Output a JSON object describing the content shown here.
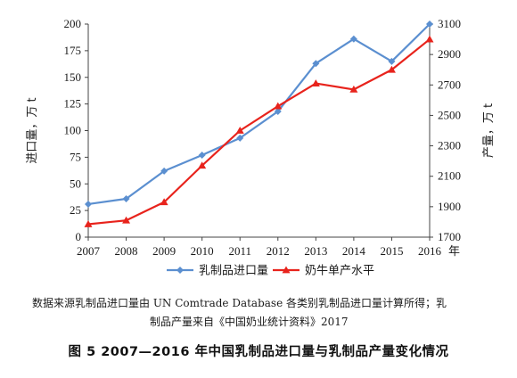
{
  "chart_data": {
    "type": "line",
    "x": [
      "2007",
      "2008",
      "2009",
      "2010",
      "2011",
      "2012",
      "2013",
      "2014",
      "2015",
      "2016"
    ],
    "x_suffix": "年",
    "ylabel_left": "进口量，万 t",
    "ylabel_right": "产量，万 t",
    "ylim_left": [
      0,
      200
    ],
    "yticks_left": [
      0,
      25,
      50,
      75,
      100,
      125,
      150,
      175,
      200
    ],
    "ylim_right": [
      1700,
      3100
    ],
    "yticks_right": [
      1700,
      1900,
      2100,
      2300,
      2500,
      2700,
      2900,
      3100
    ],
    "grid": false,
    "legend_position": "bottom",
    "series": [
      {
        "name": "乳制品进口量",
        "axis": "left",
        "color": "#5b8fd0",
        "marker": "diamond",
        "values": [
          31,
          36,
          62,
          77,
          93,
          118,
          163,
          186,
          165,
          200
        ]
      },
      {
        "name": "奶牛单产水平",
        "axis": "right",
        "color": "#e8231c",
        "marker": "triangle",
        "values": [
          1785,
          1810,
          1930,
          2170,
          2400,
          2560,
          2710,
          2670,
          2800,
          3000
        ]
      }
    ]
  },
  "source_note": {
    "line1": "数据来源乳制品进口量由 UN Comtrade Database 各类别乳制品进口量计算所得；乳",
    "line2": "制品产量来自《中国奶业统计资料》2017"
  },
  "caption": "图 5  2007—2016 年中国乳制品进口量与乳制品产量变化情况"
}
